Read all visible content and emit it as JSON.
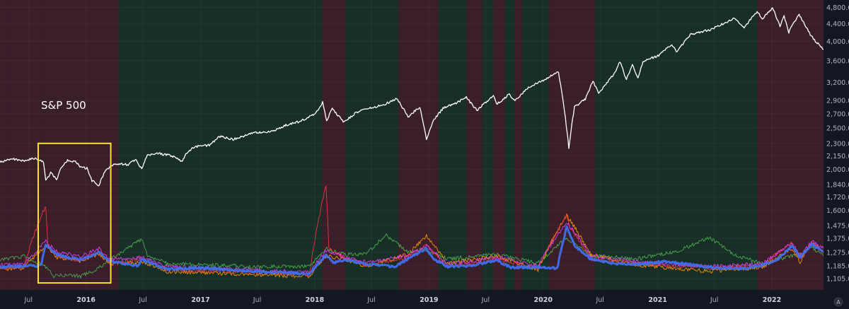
{
  "chart_data": {
    "type": "line",
    "title": "",
    "annotation": "S&P 500",
    "scale": "log",
    "ylim": [
      1040,
      5000
    ],
    "xlim": [
      "2015-04-01",
      "2022-06-15"
    ],
    "grid": true,
    "y_ticks": [
      "4,800.00",
      "4,400.00",
      "4,000.00",
      "3,600.00",
      "3,200.00",
      "2,900.00",
      "2,700.00",
      "2,500.00",
      "2,300.00",
      "2,150.00",
      "2,000.00",
      "1,840.00",
      "1,720.00",
      "1,600.00",
      "1,475.00",
      "1,375.00",
      "1,275.00",
      "1,185.00",
      "1,105.00"
    ],
    "x_ticks": [
      {
        "label": "Jul",
        "date": "2015-07-01",
        "year": false
      },
      {
        "label": "2016",
        "date": "2016-01-01",
        "year": true
      },
      {
        "label": "Jul",
        "date": "2016-07-01",
        "year": false
      },
      {
        "label": "2017",
        "date": "2017-01-01",
        "year": true
      },
      {
        "label": "Jul",
        "date": "2017-07-01",
        "year": false
      },
      {
        "label": "2018",
        "date": "2018-01-01",
        "year": true
      },
      {
        "label": "Jul",
        "date": "2018-07-01",
        "year": false
      },
      {
        "label": "2019",
        "date": "2019-01-01",
        "year": true
      },
      {
        "label": "Jul",
        "date": "2019-07-01",
        "year": false
      },
      {
        "label": "2020",
        "date": "2020-01-01",
        "year": true
      },
      {
        "label": "Jul",
        "date": "2020-07-01",
        "year": false
      },
      {
        "label": "2021",
        "date": "2021-01-01",
        "year": true
      },
      {
        "label": "Jul",
        "date": "2021-07-01",
        "year": false
      },
      {
        "label": "2022",
        "date": "2022-01-01",
        "year": true
      }
    ],
    "regimes": [
      {
        "start": "2015-04-01",
        "end": "2015-05-01",
        "state": "red"
      },
      {
        "start": "2015-05-01",
        "end": "2015-08-20",
        "state": "red"
      },
      {
        "start": "2015-08-20",
        "end": "2016-04-15",
        "state": "red"
      },
      {
        "start": "2016-04-15",
        "end": "2018-01-25",
        "state": "green"
      },
      {
        "start": "2018-01-25",
        "end": "2018-04-10",
        "state": "red"
      },
      {
        "start": "2018-04-10",
        "end": "2018-09-25",
        "state": "green"
      },
      {
        "start": "2018-09-25",
        "end": "2019-02-01",
        "state": "red"
      },
      {
        "start": "2019-02-01",
        "end": "2019-05-01",
        "state": "green"
      },
      {
        "start": "2019-05-01",
        "end": "2019-06-20",
        "state": "red"
      },
      {
        "start": "2019-06-20",
        "end": "2019-07-25",
        "state": "green"
      },
      {
        "start": "2019-07-25",
        "end": "2019-09-01",
        "state": "red"
      },
      {
        "start": "2019-09-01",
        "end": "2019-10-01",
        "state": "green"
      },
      {
        "start": "2019-10-01",
        "end": "2019-10-25",
        "state": "red"
      },
      {
        "start": "2019-10-25",
        "end": "2020-01-20",
        "state": "green"
      },
      {
        "start": "2020-01-20",
        "end": "2020-06-15",
        "state": "red"
      },
      {
        "start": "2020-06-15",
        "end": "2021-11-15",
        "state": "green"
      },
      {
        "start": "2021-11-15",
        "end": "2022-06-15",
        "state": "red"
      }
    ],
    "series": [
      {
        "name": "",
        "color": "#ffffff",
        "x": [
          "2015-04-01",
          "2015-05-15",
          "2015-06-15",
          "2015-07-20",
          "2015-08-18",
          "2015-08-25",
          "2015-09-10",
          "2015-09-29",
          "2015-10-15",
          "2015-11-03",
          "2015-12-01",
          "2015-12-15",
          "2016-01-04",
          "2016-01-20",
          "2016-02-11",
          "2016-03-01",
          "2016-04-01",
          "2016-05-15",
          "2016-06-08",
          "2016-06-27",
          "2016-07-15",
          "2016-08-15",
          "2016-10-01",
          "2016-11-04",
          "2016-11-15",
          "2016-12-15",
          "2017-02-01",
          "2017-03-01",
          "2017-04-15",
          "2017-06-15",
          "2017-08-15",
          "2017-10-01",
          "2017-11-15",
          "2018-01-02",
          "2018-01-26",
          "2018-02-08",
          "2018-02-26",
          "2018-04-02",
          "2018-05-15",
          "2018-06-15",
          "2018-07-15",
          "2018-08-15",
          "2018-09-20",
          "2018-10-29",
          "2018-11-15",
          "2018-12-03",
          "2018-12-24",
          "2019-01-15",
          "2019-02-15",
          "2019-04-01",
          "2019-04-30",
          "2019-06-03",
          "2019-07-26",
          "2019-08-05",
          "2019-09-15",
          "2019-10-03",
          "2019-11-15",
          "2020-01-01",
          "2020-02-19",
          "2020-03-09",
          "2020-03-23",
          "2020-04-10",
          "2020-05-15",
          "2020-06-08",
          "2020-06-26",
          "2020-08-15",
          "2020-09-02",
          "2020-09-23",
          "2020-10-12",
          "2020-10-30",
          "2020-11-15",
          "2021-01-04",
          "2021-02-15",
          "2021-03-04",
          "2021-04-15",
          "2021-06-15",
          "2021-08-15",
          "2021-09-02",
          "2021-10-04",
          "2021-11-15",
          "2021-12-01",
          "2022-01-03",
          "2022-01-27",
          "2022-02-09",
          "2022-02-24",
          "2022-03-29",
          "2022-04-15",
          "2022-05-04",
          "2022-05-20",
          "2022-06-15"
        ],
        "values": [
          2085,
          2110,
          2095,
          2120,
          2080,
          1880,
          1960,
          1890,
          2030,
          2100,
          2080,
          2020,
          2010,
          1880,
          1830,
          1980,
          2060,
          2050,
          2110,
          2000,
          2160,
          2180,
          2150,
          2085,
          2180,
          2260,
          2280,
          2390,
          2350,
          2430,
          2450,
          2540,
          2590,
          2700,
          2870,
          2590,
          2780,
          2580,
          2720,
          2770,
          2800,
          2850,
          2930,
          2640,
          2740,
          2790,
          2350,
          2600,
          2780,
          2870,
          2950,
          2750,
          2980,
          2840,
          3000,
          2890,
          3120,
          3240,
          3380,
          2750,
          2240,
          2800,
          2920,
          3230,
          3010,
          3350,
          3580,
          3240,
          3530,
          3270,
          3590,
          3700,
          3930,
          3770,
          4150,
          4250,
          4450,
          4530,
          4300,
          4700,
          4510,
          4790,
          4330,
          4580,
          4200,
          4630,
          4390,
          4150,
          4000,
          3830
        ]
      },
      {
        "name": "",
        "color": "#3f6ff0",
        "width": 3,
        "x": [
          "2015-04-01",
          "2015-06-15",
          "2015-08-10",
          "2015-08-25",
          "2015-10-01",
          "2015-12-15",
          "2016-02-11",
          "2016-03-15",
          "2016-06-15",
          "2016-06-27",
          "2016-09-15",
          "2017-01-15",
          "2017-06-15",
          "2017-12-15",
          "2018-02-06",
          "2018-03-01",
          "2018-04-05",
          "2018-06-15",
          "2018-09-15",
          "2018-10-25",
          "2018-12-24",
          "2019-01-15",
          "2019-03-01",
          "2019-05-15",
          "2019-06-15",
          "2019-08-05",
          "2019-09-20",
          "2019-12-15",
          "2020-02-15",
          "2020-03-16",
          "2020-04-10",
          "2020-06-01",
          "2020-08-15",
          "2020-10-30",
          "2021-01-28",
          "2021-06-15",
          "2021-10-01",
          "2021-12-01",
          "2022-01-15",
          "2022-03-07",
          "2022-04-01",
          "2022-05-09",
          "2022-06-15"
        ],
        "values": [
          1175,
          1185,
          1185,
          1330,
          1255,
          1225,
          1275,
          1215,
          1185,
          1225,
          1165,
          1170,
          1150,
          1135,
          1255,
          1205,
          1225,
          1195,
          1180,
          1230,
          1300,
          1230,
          1180,
          1185,
          1200,
          1220,
          1175,
          1175,
          1170,
          1460,
          1320,
          1230,
          1200,
          1195,
          1215,
          1175,
          1165,
          1190,
          1220,
          1320,
          1240,
          1330,
          1280
        ]
      },
      {
        "name": "",
        "color": "#e040fb",
        "x": [
          "2015-04-01",
          "2015-06-15",
          "2015-08-25",
          "2015-10-01",
          "2015-12-15",
          "2016-02-11",
          "2016-03-15",
          "2016-06-27",
          "2016-09-15",
          "2017-06-15",
          "2017-12-15",
          "2018-02-06",
          "2018-04-05",
          "2018-06-15",
          "2018-10-25",
          "2018-12-24",
          "2019-03-01",
          "2019-08-05",
          "2019-12-15",
          "2020-03-16",
          "2020-06-01",
          "2020-10-30",
          "2021-06-15",
          "2021-12-01",
          "2022-03-07",
          "2022-04-01",
          "2022-05-09",
          "2022-06-15"
        ],
        "values": [
          1190,
          1195,
          1350,
          1275,
          1245,
          1300,
          1225,
          1240,
          1180,
          1160,
          1140,
          1290,
          1240,
          1210,
          1250,
          1320,
          1195,
          1240,
          1185,
          1500,
          1250,
          1210,
          1180,
          1200,
          1340,
          1255,
          1350,
          1300
        ]
      },
      {
        "name": "",
        "color": "#f23645",
        "x": [
          "2015-04-01",
          "2015-06-15",
          "2015-08-25",
          "2015-09-01",
          "2015-10-01",
          "2015-12-15",
          "2016-02-11",
          "2016-03-15",
          "2016-06-27",
          "2016-09-15",
          "2017-06-15",
          "2017-12-15",
          "2018-02-06",
          "2018-02-15",
          "2018-04-05",
          "2018-06-15",
          "2018-10-25",
          "2018-12-24",
          "2019-03-01",
          "2019-08-05",
          "2019-12-15",
          "2020-03-16",
          "2020-03-25",
          "2020-06-01",
          "2020-10-30",
          "2021-06-15",
          "2021-12-01",
          "2022-03-07",
          "2022-04-01",
          "2022-05-09",
          "2022-06-15"
        ],
        "values": [
          1170,
          1180,
          1640,
          1330,
          1250,
          1220,
          1280,
          1200,
          1230,
          1160,
          1145,
          1130,
          1840,
          1300,
          1240,
          1190,
          1240,
          1320,
          1180,
          1230,
          1170,
          1560,
          1470,
          1230,
          1200,
          1170,
          1190,
          1340,
          1230,
          1340,
          1280
        ]
      },
      {
        "name": "",
        "color": "#ff9800",
        "x": [
          "2015-04-01",
          "2015-06-15",
          "2015-08-25",
          "2015-10-01",
          "2015-12-15",
          "2016-02-11",
          "2016-03-15",
          "2016-06-27",
          "2016-09-15",
          "2017-06-15",
          "2017-12-15",
          "2018-02-06",
          "2018-04-05",
          "2018-06-15",
          "2018-10-25",
          "2018-12-24",
          "2019-03-01",
          "2019-08-05",
          "2019-12-15",
          "2020-03-16",
          "2020-06-01",
          "2020-10-30",
          "2021-06-15",
          "2021-12-01",
          "2022-03-07",
          "2022-04-01",
          "2022-05-09",
          "2022-06-15"
        ],
        "values": [
          1165,
          1170,
          1320,
          1240,
          1215,
          1265,
          1200,
          1210,
          1150,
          1130,
          1120,
          1250,
          1230,
          1180,
          1260,
          1390,
          1200,
          1250,
          1160,
          1560,
          1260,
          1190,
          1150,
          1175,
          1300,
          1210,
          1350,
          1270
        ]
      },
      {
        "name": "",
        "color": "#4caf50",
        "x": [
          "2015-04-01",
          "2015-06-15",
          "2015-08-25",
          "2015-09-20",
          "2015-10-15",
          "2015-12-15",
          "2016-02-11",
          "2016-03-15",
          "2016-06-27",
          "2016-07-15",
          "2016-09-15",
          "2017-06-15",
          "2017-12-15",
          "2018-02-06",
          "2018-04-05",
          "2018-06-15",
          "2018-08-15",
          "2018-10-25",
          "2018-12-24",
          "2019-03-01",
          "2019-08-05",
          "2019-12-15",
          "2020-03-16",
          "2020-06-01",
          "2020-10-30",
          "2021-03-15",
          "2021-06-15",
          "2021-09-01",
          "2021-12-01",
          "2022-03-07",
          "2022-04-01",
          "2022-05-09",
          "2022-06-15"
        ],
        "values": [
          1220,
          1250,
          1180,
          1120,
          1130,
          1120,
          1170,
          1220,
          1370,
          1250,
          1200,
          1180,
          1180,
          1300,
          1260,
          1260,
          1400,
          1280,
          1290,
          1230,
          1260,
          1200,
          1380,
          1250,
          1230,
          1290,
          1380,
          1260,
          1200,
          1250,
          1260,
          1310,
          1250
        ]
      }
    ]
  },
  "highlight_box": {
    "start": "2015-08-01",
    "end": "2016-03-20",
    "top": 2300,
    "bottom": 1080,
    "color": "#ffe135"
  }
}
